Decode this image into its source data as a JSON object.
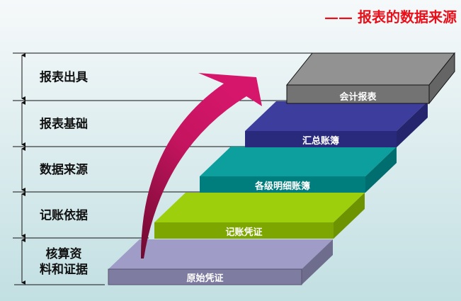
{
  "title": "—— 报表的数据来源",
  "stages": [
    {
      "lines": [
        "报表出具"
      ]
    },
    {
      "lines": [
        "报表基础"
      ]
    },
    {
      "lines": [
        "数据来源"
      ]
    },
    {
      "lines": [
        "记账依据"
      ]
    },
    {
      "lines": [
        "核算资",
        "料和证据"
      ]
    }
  ],
  "steps": [
    {
      "label": "原始凭证",
      "color": "#9a97c4"
    },
    {
      "label": "记账凭证",
      "color": "#99cc00"
    },
    {
      "label": "各级明细账簿",
      "color": "#009999"
    },
    {
      "label": "汇总账簿",
      "color": "#333399"
    },
    {
      "label": "会计报表",
      "color": "#8c8c8c"
    }
  ],
  "arrow_color": "#d41367"
}
